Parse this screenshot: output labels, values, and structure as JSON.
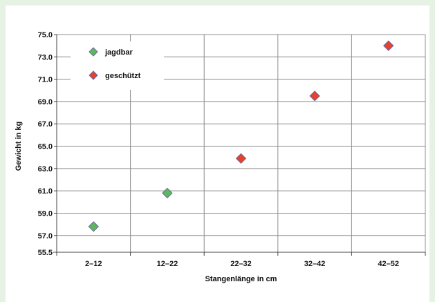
{
  "chart_data": {
    "type": "scatter",
    "xlabel": "Stangenlänge in cm",
    "ylabel": "Gewicht in kg",
    "categories": [
      "2–12",
      "12–22",
      "22–32",
      "32–42",
      "42–52"
    ],
    "ylim": [
      55.5,
      75.0
    ],
    "yticks": [
      "55.5",
      "57.0",
      "59.0",
      "61.0",
      "63.0",
      "65.0",
      "67.0",
      "69.0",
      "71.0",
      "73.0",
      "75.0"
    ],
    "grid": true,
    "legend_position": "top-left",
    "series": [
      {
        "name": "jagdbar",
        "color": "#5cb85c",
        "points": [
          {
            "x": "2–12",
            "y": 57.8
          },
          {
            "x": "12–22",
            "y": 60.8
          }
        ]
      },
      {
        "name": "geschützt",
        "color": "#e8402a",
        "points": [
          {
            "x": "22–32",
            "y": 63.9
          },
          {
            "x": "32–42",
            "y": 69.5
          },
          {
            "x": "42–52",
            "y": 74.0
          }
        ]
      }
    ]
  }
}
